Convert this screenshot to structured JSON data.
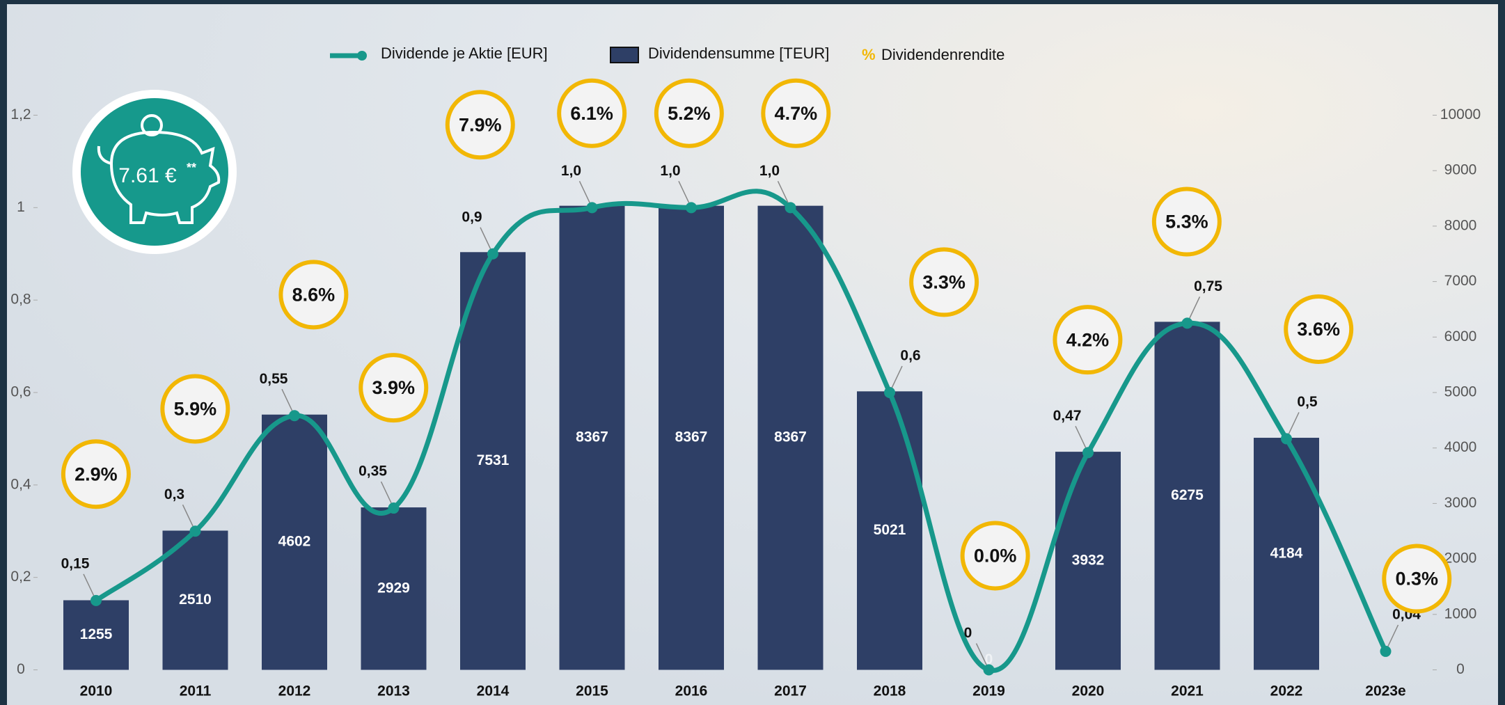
{
  "chart_data": {
    "type": "bar-line",
    "categories": [
      "2010",
      "2011",
      "2012",
      "2013",
      "2014",
      "2015",
      "2016",
      "2017",
      "2018",
      "2019",
      "2020",
      "2021",
      "2022",
      "2023e"
    ],
    "series": [
      {
        "name": "Dividende je Aktie [EUR]",
        "type": "line",
        "color": "#17988b",
        "values": [
          0.15,
          0.3,
          0.55,
          0.35,
          0.9,
          1.0,
          1.0,
          1.0,
          0.6,
          0,
          0.47,
          0.75,
          0.5,
          0.04
        ],
        "value_labels": [
          "0,15",
          "0,3",
          "0,55",
          "0,35",
          "0,9",
          "1,0",
          "1,0",
          "1,0",
          "0,6",
          "0",
          "0,47",
          "0,75",
          "0,5",
          "0,04"
        ]
      },
      {
        "name": "Dividendensumme [TEUR]",
        "type": "bar",
        "axis": "y2",
        "color": "#2e3f66",
        "values": [
          1255,
          2510,
          4602,
          2929,
          7531,
          8367,
          8367,
          8367,
          5021,
          0,
          3932,
          6275,
          4184,
          null
        ]
      },
      {
        "name": "Dividendenrendite",
        "type": "badge",
        "symbol": "%",
        "color": "#f2b705",
        "values": [
          2.9,
          5.9,
          8.6,
          3.9,
          7.9,
          6.1,
          5.2,
          4.7,
          3.3,
          0.0,
          4.2,
          5.3,
          3.6,
          0.3
        ],
        "value_labels": [
          "2.9%",
          "5.9%",
          "8.6%",
          "3.9%",
          "7.9%",
          "6.1%",
          "5.2%",
          "4.7%",
          "3.3%",
          "0.0%",
          "4.2%",
          "5.3%",
          "3.6%",
          "0.3%"
        ]
      }
    ],
    "ylim": [
      0,
      1.2
    ],
    "yticks": [
      0,
      {
        "value": 0.2,
        "label": "0,2"
      },
      {
        "value": 0.4,
        "label": "0,4"
      },
      {
        "value": 0.6,
        "label": "0,6"
      },
      {
        "value": 0.8,
        "label": "0,8"
      },
      1,
      {
        "value": 1.2,
        "label": "1,2"
      }
    ],
    "y2lim": [
      0,
      10000
    ],
    "y2ticks": [
      0,
      1000,
      2000,
      3000,
      4000,
      5000,
      6000,
      7000,
      8000,
      9000,
      10000
    ],
    "grid": false
  },
  "badge": {
    "text": "7.61 €",
    "note": "**"
  }
}
